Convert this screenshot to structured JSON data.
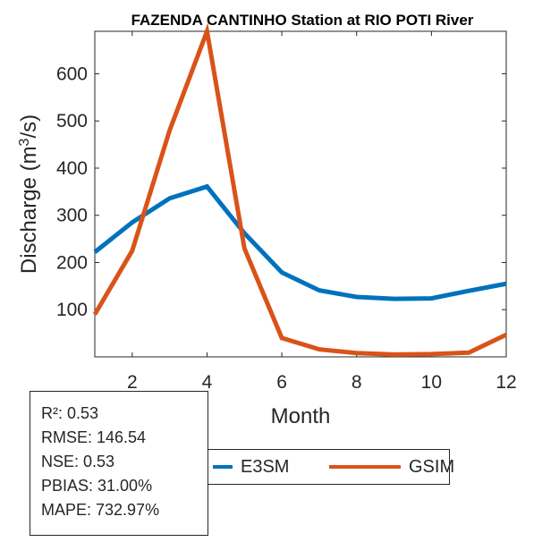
{
  "chart_data": {
    "type": "line",
    "title": "FAZENDA CANTINHO  Station at  RIO POTI  River",
    "xlabel": "Month",
    "ylabel": "Discharge (m³/s)",
    "xlim": [
      1,
      12
    ],
    "ylim": [
      0,
      690
    ],
    "x": [
      1,
      2,
      3,
      4,
      5,
      6,
      7,
      8,
      9,
      10,
      11,
      12
    ],
    "x_ticks": [
      2,
      4,
      6,
      8,
      10,
      12
    ],
    "y_ticks": [
      100,
      200,
      300,
      400,
      500,
      600
    ],
    "grid": false,
    "legend_position": "bottom",
    "series": [
      {
        "name": "E3SM",
        "color": "#0072BD",
        "values": [
          222,
          285,
          336,
          361,
          262,
          179,
          141,
          127,
          123,
          124,
          140,
          155
        ]
      },
      {
        "name": "GSIM",
        "color": "#D95319",
        "values": [
          90,
          225,
          480,
          690,
          230,
          40,
          16,
          8,
          5,
          6,
          9,
          47
        ]
      }
    ]
  },
  "stats": {
    "r2": "R²: 0.53",
    "rmse": "RMSE: 146.54",
    "nse": "NSE: 0.53",
    "pbias": "PBIAS: 31.00%",
    "mape": "MAPE: 732.97%"
  }
}
